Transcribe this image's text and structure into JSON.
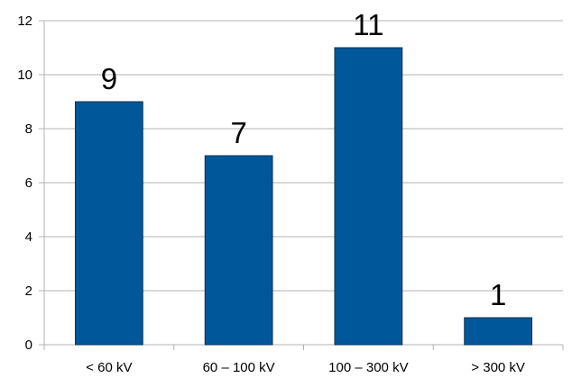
{
  "chart_data": {
    "type": "bar",
    "categories": [
      "< 60 kV",
      "60 – 100 kV",
      "100 – 300 kV",
      "> 300 kV"
    ],
    "values": [
      9,
      7,
      11,
      1
    ],
    "data_labels": [
      "9",
      "7",
      "11",
      "1"
    ],
    "yticks": [
      "0",
      "2",
      "4",
      "6",
      "8",
      "10",
      "12"
    ],
    "ylim": [
      0,
      12
    ],
    "grid": true,
    "legend": "none",
    "colors": {
      "bar": "#00589a",
      "bar_stroke": "#0b2f4f",
      "grid": "#b3b3b3",
      "axis": "#b3b3b3"
    }
  }
}
